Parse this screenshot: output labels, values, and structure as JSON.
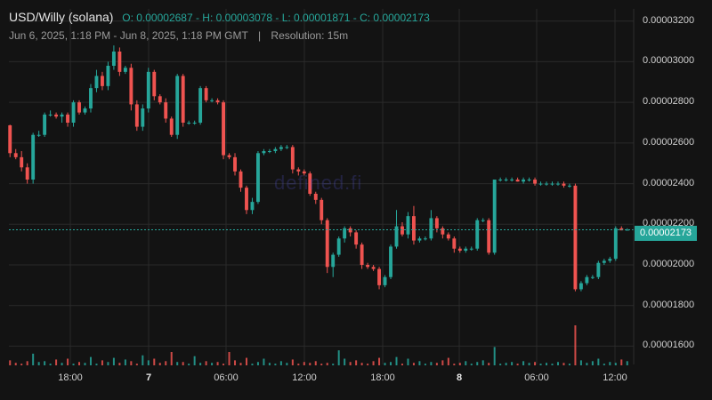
{
  "header": {
    "symbol": "USD/Willy (solana)",
    "ohlc": "O: 0.00002687 - H: 0.00003078 - L: 0.00001871 - C: 0.00002173",
    "range": "Jun 6, 2025, 1:18 PM - Jun 8, 2025, 1:18 PM GMT",
    "separator": "|",
    "resolution": "Resolution: 15m"
  },
  "watermark": "defined.fi",
  "last_price": "0.00002173",
  "colors": {
    "up": "#26a69a",
    "down": "#ef5350",
    "background": "#131313",
    "grid": "#2a2a2a"
  },
  "chart_data": {
    "type": "candlestick",
    "ylim": [
      1.51e-05,
      3.26e-05
    ],
    "y_ticks": [
      "0.00003200",
      "0.00003000",
      "0.00002800",
      "0.00002600",
      "0.00002400",
      "0.00002200",
      "0.00002000",
      "0.00001800",
      "0.00001600"
    ],
    "x_ticks": [
      "18:00",
      "7",
      "06:00",
      "12:00",
      "18:00",
      "8",
      "06:00",
      "12:00"
    ],
    "current_price": 2.173e-05,
    "ohlc": [
      [
        2.687,
        2.69,
        2.53,
        2.55
      ],
      [
        2.55,
        2.57,
        2.52,
        2.53
      ],
      [
        2.53,
        2.56,
        2.46,
        2.48
      ],
      [
        2.48,
        2.5,
        2.4,
        2.42
      ],
      [
        2.42,
        2.65,
        2.4,
        2.64
      ],
      [
        2.64,
        2.66,
        2.63,
        2.64
      ],
      [
        2.64,
        2.75,
        2.63,
        2.74
      ],
      [
        2.74,
        2.76,
        2.73,
        2.74
      ],
      [
        2.74,
        2.75,
        2.72,
        2.73
      ],
      [
        2.73,
        2.75,
        2.7,
        2.74
      ],
      [
        2.74,
        2.75,
        2.68,
        2.7
      ],
      [
        2.7,
        2.81,
        2.68,
        2.8
      ],
      [
        2.8,
        2.81,
        2.74,
        2.75
      ],
      [
        2.75,
        2.78,
        2.74,
        2.77
      ],
      [
        2.77,
        2.89,
        2.75,
        2.87
      ],
      [
        2.87,
        2.96,
        2.85,
        2.93
      ],
      [
        2.93,
        2.95,
        2.86,
        2.88
      ],
      [
        2.88,
        3.0,
        2.86,
        2.98
      ],
      [
        2.98,
        3.08,
        2.96,
        3.05
      ],
      [
        3.05,
        3.07,
        2.93,
        2.95
      ],
      [
        2.95,
        2.98,
        2.94,
        2.97
      ],
      [
        2.97,
        2.99,
        2.76,
        2.79
      ],
      [
        2.79,
        2.81,
        2.66,
        2.68
      ],
      [
        2.68,
        2.79,
        2.66,
        2.77
      ],
      [
        2.77,
        2.97,
        2.75,
        2.95
      ],
      [
        2.95,
        2.96,
        2.81,
        2.83
      ],
      [
        2.83,
        2.84,
        2.79,
        2.8
      ],
      [
        2.8,
        2.82,
        2.7,
        2.72
      ],
      [
        2.72,
        2.73,
        2.63,
        2.64
      ],
      [
        2.64,
        2.94,
        2.62,
        2.93
      ],
      [
        2.93,
        2.94,
        2.68,
        2.7
      ],
      [
        2.7,
        2.71,
        2.69,
        2.7
      ],
      [
        2.7,
        2.71,
        2.69,
        2.7
      ],
      [
        2.7,
        2.88,
        2.69,
        2.87
      ],
      [
        2.87,
        2.88,
        2.8,
        2.81
      ],
      [
        2.81,
        2.82,
        2.8,
        2.81
      ],
      [
        2.81,
        2.82,
        2.79,
        2.8
      ],
      [
        2.8,
        2.81,
        2.52,
        2.54
      ],
      [
        2.54,
        2.55,
        2.52,
        2.53
      ],
      [
        2.53,
        2.55,
        2.44,
        2.46
      ],
      [
        2.46,
        2.47,
        2.36,
        2.38
      ],
      [
        2.38,
        2.39,
        2.25,
        2.27
      ],
      [
        2.27,
        2.33,
        2.25,
        2.31
      ],
      [
        2.31,
        2.56,
        2.3,
        2.55
      ],
      [
        2.55,
        2.57,
        2.54,
        2.56
      ],
      [
        2.56,
        2.57,
        2.55,
        2.56
      ],
      [
        2.56,
        2.58,
        2.55,
        2.57
      ],
      [
        2.57,
        2.59,
        2.56,
        2.58
      ],
      [
        2.58,
        2.59,
        2.57,
        2.58
      ],
      [
        2.58,
        2.59,
        2.45,
        2.47
      ],
      [
        2.47,
        2.48,
        2.44,
        2.46
      ],
      [
        2.46,
        2.47,
        2.44,
        2.45
      ],
      [
        2.45,
        2.46,
        2.34,
        2.35
      ],
      [
        2.35,
        2.36,
        2.3,
        2.32
      ],
      [
        2.32,
        2.33,
        2.2,
        2.22
      ],
      [
        2.22,
        2.23,
        1.96,
        1.99
      ],
      [
        1.99,
        2.06,
        1.94,
        2.05
      ],
      [
        2.05,
        2.14,
        2.04,
        2.13
      ],
      [
        2.13,
        2.19,
        2.11,
        2.18
      ],
      [
        2.18,
        2.19,
        2.14,
        2.16
      ],
      [
        2.16,
        2.17,
        2.08,
        2.1
      ],
      [
        2.1,
        2.11,
        1.98,
        2.0
      ],
      [
        2.0,
        2.01,
        1.98,
        1.99
      ],
      [
        1.99,
        2.0,
        1.97,
        1.98
      ],
      [
        1.98,
        1.99,
        1.88,
        1.9
      ],
      [
        1.9,
        1.95,
        1.89,
        1.94
      ],
      [
        1.94,
        2.1,
        1.93,
        2.09
      ],
      [
        2.09,
        2.27,
        2.08,
        2.19
      ],
      [
        2.19,
        2.21,
        2.14,
        2.15
      ],
      [
        2.15,
        2.26,
        2.13,
        2.24
      ],
      [
        2.24,
        2.29,
        2.1,
        2.12
      ],
      [
        2.12,
        2.14,
        2.11,
        2.13
      ],
      [
        2.13,
        2.14,
        2.12,
        2.13
      ],
      [
        2.13,
        2.27,
        2.12,
        2.23
      ],
      [
        2.23,
        2.24,
        2.16,
        2.18
      ],
      [
        2.18,
        2.19,
        2.13,
        2.15
      ],
      [
        2.15,
        2.16,
        2.12,
        2.13
      ],
      [
        2.13,
        2.14,
        2.06,
        2.08
      ],
      [
        2.08,
        2.09,
        2.06,
        2.07
      ],
      [
        2.07,
        2.09,
        2.06,
        2.08
      ],
      [
        2.08,
        2.09,
        2.07,
        2.08
      ],
      [
        2.08,
        2.23,
        2.07,
        2.22
      ],
      [
        2.22,
        2.23,
        2.21,
        2.22
      ],
      [
        2.22,
        2.23,
        2.05,
        2.06
      ],
      [
        2.06,
        2.42,
        2.05,
        2.42
      ],
      [
        2.42,
        2.43,
        2.41,
        2.42
      ],
      [
        2.42,
        2.43,
        2.41,
        2.42
      ],
      [
        2.42,
        2.43,
        2.41,
        2.42
      ],
      [
        2.42,
        2.43,
        2.41,
        2.41
      ],
      [
        2.41,
        2.43,
        2.4,
        2.42
      ],
      [
        2.42,
        2.43,
        2.41,
        2.42
      ],
      [
        2.42,
        2.43,
        2.39,
        2.4
      ],
      [
        2.4,
        2.41,
        2.39,
        2.4
      ],
      [
        2.4,
        2.41,
        2.39,
        2.4
      ],
      [
        2.4,
        2.41,
        2.39,
        2.4
      ],
      [
        2.4,
        2.41,
        2.39,
        2.4
      ],
      [
        2.4,
        2.41,
        2.38,
        2.39
      ],
      [
        2.39,
        2.4,
        2.38,
        2.39
      ],
      [
        2.39,
        2.4,
        1.87,
        1.88
      ],
      [
        1.88,
        1.92,
        1.87,
        1.91
      ],
      [
        1.91,
        1.95,
        1.9,
        1.94
      ],
      [
        1.94,
        1.95,
        1.93,
        1.94
      ],
      [
        1.94,
        2.02,
        1.93,
        2.01
      ],
      [
        2.01,
        2.03,
        2.0,
        2.02
      ],
      [
        2.02,
        2.04,
        2.01,
        2.03
      ],
      [
        2.03,
        2.19,
        2.02,
        2.18
      ],
      [
        2.18,
        2.19,
        2.17,
        2.17
      ],
      [
        2.17,
        2.18,
        2.17,
        2.173
      ]
    ],
    "volume": [
      6,
      3,
      2,
      5,
      14,
      4,
      5,
      2,
      7,
      3,
      8,
      2,
      4,
      3,
      10,
      2,
      6,
      4,
      9,
      3,
      7,
      5,
      2,
      12,
      6,
      8,
      3,
      5,
      16,
      4,
      4,
      2,
      11,
      3,
      5,
      3,
      4,
      2,
      16,
      6,
      3,
      9,
      2,
      4,
      8,
      3,
      2,
      5,
      3,
      7,
      2,
      4,
      3,
      5,
      2,
      3,
      2,
      18,
      8,
      4,
      6,
      3,
      2,
      5,
      9,
      3,
      4,
      10,
      2,
      8,
      3,
      5,
      2,
      4,
      3,
      6,
      9,
      2,
      3,
      5,
      2,
      4,
      6,
      3,
      22,
      2,
      3,
      4,
      2,
      5,
      3,
      4,
      2,
      3,
      2,
      4,
      3,
      2,
      48,
      6,
      3,
      5,
      8,
      2,
      4,
      3,
      7,
      5
    ]
  }
}
